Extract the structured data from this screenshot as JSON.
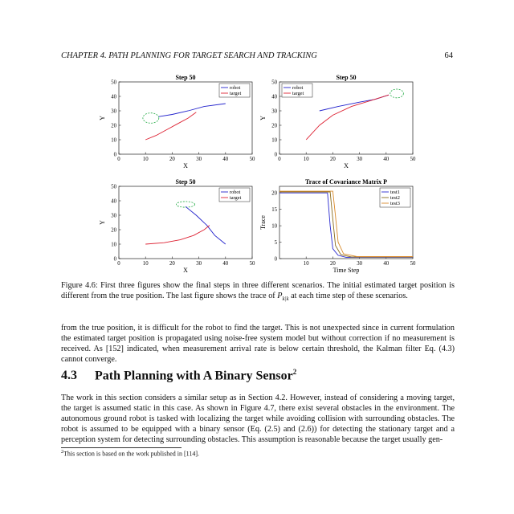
{
  "header": {
    "chapter_title": "CHAPTER 4.  PATH PLANNING FOR TARGET SEARCH AND TRACKING",
    "page_number": "64"
  },
  "chart_data": [
    {
      "type": "line",
      "title": "Step 50",
      "xlabel": "X",
      "ylabel": "Y",
      "xlim": [
        0,
        50
      ],
      "ylim": [
        0,
        50
      ],
      "xticks": [
        0,
        10,
        20,
        30,
        40,
        50
      ],
      "yticks": [
        0,
        10,
        20,
        30,
        40,
        50
      ],
      "legend": [
        "robot",
        "target"
      ],
      "legend_position": "top-right",
      "series": [
        {
          "name": "robot",
          "color": "#2222cc",
          "points": [
            [
              15,
              26
            ],
            [
              20,
              27.5
            ],
            [
              26,
              30
            ],
            [
              32,
              33
            ],
            [
              40,
              35
            ]
          ]
        },
        {
          "name": "target",
          "color": "#dd2233",
          "points": [
            [
              10,
              10
            ],
            [
              14,
              13
            ],
            [
              18,
              17
            ],
            [
              22,
              21
            ],
            [
              26,
              25
            ],
            [
              29,
              29
            ]
          ]
        }
      ],
      "ellipse": {
        "cx": 12,
        "cy": 25,
        "rx": 3,
        "ry": 3.5,
        "color": "#22aa44"
      }
    },
    {
      "type": "line",
      "title": "Step 50",
      "xlabel": "X",
      "ylabel": "Y",
      "xlim": [
        0,
        50
      ],
      "ylim": [
        0,
        50
      ],
      "xticks": [
        0,
        10,
        20,
        30,
        40,
        50
      ],
      "yticks": [
        0,
        10,
        20,
        30,
        40,
        50
      ],
      "legend": [
        "robot",
        "target"
      ],
      "legend_position": "top-left",
      "series": [
        {
          "name": "robot",
          "color": "#2222cc",
          "points": [
            [
              15,
              30
            ],
            [
              22,
              33
            ],
            [
              30,
              36
            ],
            [
              36,
              38
            ],
            [
              41,
              41
            ]
          ]
        },
        {
          "name": "target",
          "color": "#dd2233",
          "points": [
            [
              10,
              10
            ],
            [
              15,
              20
            ],
            [
              20,
              27
            ],
            [
              27,
              33
            ],
            [
              34,
              37
            ],
            [
              41,
              41
            ]
          ]
        }
      ],
      "ellipse": {
        "cx": 44,
        "cy": 42,
        "rx": 2.5,
        "ry": 3,
        "color": "#22aa44"
      }
    },
    {
      "type": "line",
      "title": "Step 50",
      "xlabel": "X",
      "ylabel": "Y",
      "xlim": [
        0,
        50
      ],
      "ylim": [
        0,
        50
      ],
      "xticks": [
        0,
        10,
        20,
        30,
        40,
        50
      ],
      "yticks": [
        0,
        10,
        20,
        30,
        40,
        50
      ],
      "legend": [
        "robot",
        "target"
      ],
      "legend_position": "top-right",
      "series": [
        {
          "name": "robot",
          "color": "#2222cc",
          "points": [
            [
              25,
              36
            ],
            [
              29,
              30
            ],
            [
              33,
              23
            ],
            [
              36,
              16
            ],
            [
              40,
              10
            ]
          ]
        },
        {
          "name": "target",
          "color": "#dd2233",
          "points": [
            [
              10,
              10
            ],
            [
              17,
              11
            ],
            [
              23,
              13
            ],
            [
              28,
              16
            ],
            [
              32,
              20
            ],
            [
              34,
              23
            ]
          ]
        }
      ],
      "ellipse": {
        "cx": 25,
        "cy": 37.5,
        "rx": 3.5,
        "ry": 2,
        "color": "#22aa44"
      }
    },
    {
      "type": "line",
      "title": "Trace of Covariance Matrix P",
      "xlabel": "Time Step",
      "ylabel": "Trace",
      "xlim": [
        0,
        50
      ],
      "ylim": [
        0,
        22
      ],
      "xticks": [
        10,
        20,
        30,
        40,
        50
      ],
      "yticks": [
        0,
        5,
        10,
        15,
        20
      ],
      "legend": [
        "test1",
        "test2",
        "test3"
      ],
      "legend_position": "top-right",
      "series": [
        {
          "name": "test1",
          "color": "#2a2ad0",
          "points": [
            [
              0,
              20
            ],
            [
              18,
              20
            ],
            [
              19,
              10
            ],
            [
              20,
              3
            ],
            [
              22,
              1
            ],
            [
              25,
              0.4
            ],
            [
              50,
              0.4
            ]
          ]
        },
        {
          "name": "test2",
          "color": "#8a6d20",
          "points": [
            [
              0,
              20.3
            ],
            [
              19,
              20.3
            ],
            [
              20,
              12
            ],
            [
              21,
              4
            ],
            [
              23,
              1.2
            ],
            [
              27,
              0.5
            ],
            [
              50,
              0.5
            ]
          ]
        },
        {
          "name": "test3",
          "color": "#d98a2a",
          "points": [
            [
              0,
              20.5
            ],
            [
              20,
              20.5
            ],
            [
              21,
              13
            ],
            [
              22,
              5
            ],
            [
              24,
              1.5
            ],
            [
              29,
              0.6
            ],
            [
              50,
              0.6
            ]
          ]
        }
      ]
    }
  ],
  "caption": {
    "before_math": "Figure 4.6: First three figures show the final steps in three different scenarios. The initial estimated target position is different from the true position. The last figure shows the trace of ",
    "math_symbol": "P",
    "math_subscript": "k|k",
    "after_math": " at each time step of these scenarios."
  },
  "paragraph_1": "from the true position, it is difficult for the robot to find the target. This is not unexpected since in current formulation the estimated target position is propagated using noise-free system model but without correction if no measurement is received. As [152] indicated, when measurement arrival rate is below certain threshold, the Kalman filter Eq. (4.3) cannot converge.",
  "section": {
    "number": "4.3",
    "title": "Path Planning with A Binary Sensor",
    "footnote_mark": "2"
  },
  "paragraph_2": "The work in this section considers a similar setup as in Section 4.2. However, instead of considering a moving target, the target is assumed static in this case. As shown in Figure 4.7, there exist several obstacles in the environment. The autonomous ground robot is tasked with localizing the target while avoiding collision with surrounding obstacles. The robot is assumed to be equipped with a binary sensor (Eq. (2.5) and (2.6)) for detecting the stationary target and a perception system for detecting surrounding obstacles. This assumption is reasonable because the target usually gen-",
  "footnote": {
    "mark": "2",
    "text": "This section is based on the work published in [114]."
  }
}
